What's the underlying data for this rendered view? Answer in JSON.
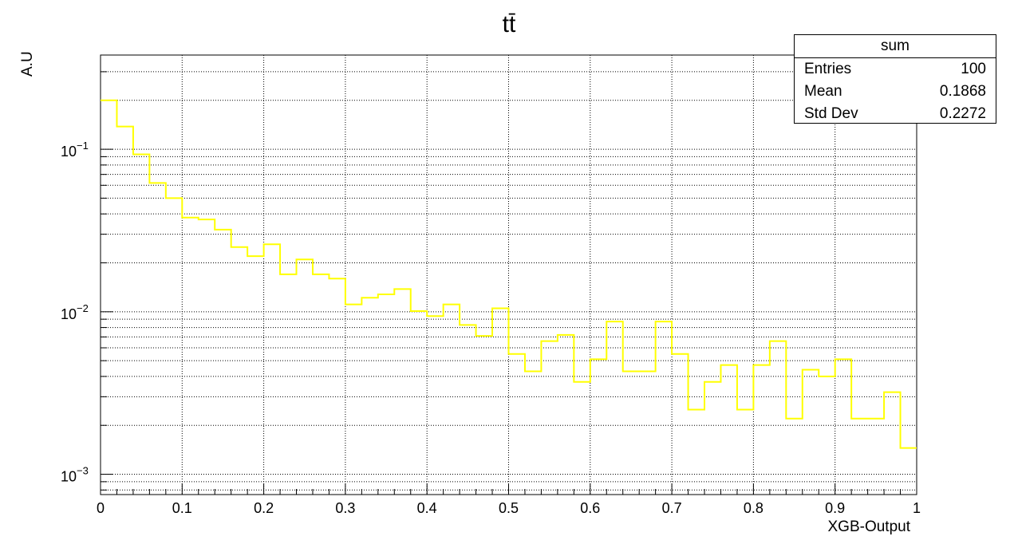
{
  "chart_data": {
    "type": "step-histogram",
    "title": "tt̄",
    "xlabel": "XGB-Output",
    "ylabel": "A.U",
    "xlim": [
      0,
      1
    ],
    "ylim": [
      0.00075,
      0.38
    ],
    "yscale": "log",
    "grid": true,
    "bin_width": 0.02,
    "bin_edges_start": 0,
    "x_ticks": [
      "0",
      "0.1",
      "0.2",
      "0.3",
      "0.4",
      "0.5",
      "0.6",
      "0.7",
      "0.8",
      "0.9",
      "1"
    ],
    "y_ticks": [
      {
        "base": "10",
        "exp": "−1"
      },
      {
        "base": "10",
        "exp": "−2"
      },
      {
        "base": "10",
        "exp": "−3"
      }
    ],
    "series": [
      {
        "color": "#ffff00",
        "values": [
          0.2,
          0.138,
          0.093,
          0.062,
          0.05,
          0.038,
          0.037,
          0.032,
          0.025,
          0.022,
          0.026,
          0.017,
          0.021,
          0.017,
          0.016,
          0.0111,
          0.0122,
          0.0128,
          0.0138,
          0.0101,
          0.0094,
          0.0111,
          0.0083,
          0.0071,
          0.0105,
          0.0055,
          0.0043,
          0.0066,
          0.0072,
          0.0037,
          0.0051,
          0.0087,
          0.0043,
          0.0043,
          0.0087,
          0.0055,
          0.0025,
          0.0037,
          0.0047,
          0.0025,
          0.0047,
          0.0066,
          0.0022,
          0.0044,
          0.004,
          0.0051,
          0.0022,
          0.0022,
          0.0032,
          0.00145
        ]
      }
    ]
  },
  "stats": {
    "header": "sum",
    "rows": [
      {
        "label": "Entries",
        "value": "100"
      },
      {
        "label": "Mean",
        "value": "0.1868"
      },
      {
        "label": "Std Dev",
        "value": "0.2272"
      }
    ]
  }
}
